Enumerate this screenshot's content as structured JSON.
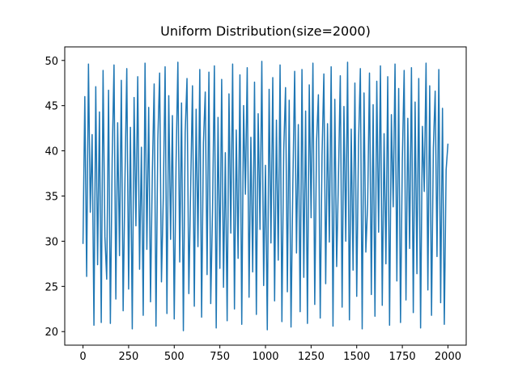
{
  "chart_data": {
    "type": "line",
    "title": "Uniform Distribution(size=2000)",
    "color": "#1f77b4",
    "xlim": [
      -100,
      2100
    ],
    "xticks": [
      0,
      250,
      500,
      750,
      1000,
      1250,
      1500,
      1750,
      2000
    ],
    "ylim": [
      18.5,
      51.5
    ],
    "yticks": [
      20,
      25,
      30,
      35,
      40,
      45,
      50
    ],
    "x": [
      0,
      10,
      20,
      30,
      40,
      50,
      60,
      70,
      80,
      90,
      100,
      110,
      120,
      130,
      140,
      150,
      160,
      170,
      180,
      190,
      200,
      210,
      220,
      230,
      240,
      250,
      260,
      270,
      280,
      290,
      300,
      310,
      320,
      330,
      340,
      350,
      360,
      370,
      380,
      390,
      400,
      410,
      420,
      430,
      440,
      450,
      460,
      470,
      480,
      490,
      500,
      510,
      520,
      530,
      540,
      550,
      560,
      570,
      580,
      590,
      600,
      610,
      620,
      630,
      640,
      650,
      660,
      670,
      680,
      690,
      700,
      710,
      720,
      730,
      740,
      750,
      760,
      770,
      780,
      790,
      800,
      810,
      820,
      830,
      840,
      850,
      860,
      870,
      880,
      890,
      900,
      910,
      920,
      930,
      940,
      950,
      960,
      970,
      980,
      990,
      1000,
      1010,
      1020,
      1030,
      1040,
      1050,
      1060,
      1070,
      1080,
      1090,
      1100,
      1110,
      1120,
      1130,
      1140,
      1150,
      1160,
      1170,
      1180,
      1190,
      1200,
      1210,
      1220,
      1230,
      1240,
      1250,
      1260,
      1270,
      1280,
      1290,
      1300,
      1310,
      1320,
      1330,
      1340,
      1350,
      1360,
      1370,
      1380,
      1390,
      1400,
      1410,
      1420,
      1430,
      1440,
      1450,
      1460,
      1470,
      1480,
      1490,
      1500,
      1510,
      1520,
      1530,
      1540,
      1550,
      1560,
      1570,
      1580,
      1590,
      1600,
      1610,
      1620,
      1630,
      1640,
      1650,
      1660,
      1670,
      1680,
      1690,
      1700,
      1710,
      1720,
      1730,
      1740,
      1750,
      1760,
      1770,
      1780,
      1790,
      1800,
      1810,
      1820,
      1830,
      1840,
      1850,
      1860,
      1870,
      1880,
      1890,
      1900,
      1910,
      1920,
      1930,
      1940,
      1950,
      1960,
      1970,
      1980,
      1990,
      2000
    ],
    "values": [
      29.7,
      46.0,
      26.1,
      49.6,
      33.2,
      41.8,
      20.7,
      47.1,
      27.4,
      44.3,
      21.0,
      48.9,
      30.5,
      25.8,
      46.7,
      20.9,
      39.2,
      49.5,
      23.6,
      43.1,
      28.4,
      47.8,
      22.3,
      36.9,
      49.1,
      24.7,
      42.6,
      20.3,
      45.9,
      31.7,
      48.2,
      26.9,
      40.4,
      21.8,
      49.7,
      29.1,
      44.8,
      23.3,
      37.6,
      47.4,
      20.6,
      41.2,
      48.6,
      25.5,
      34.8,
      49.3,
      22.0,
      46.1,
      30.2,
      43.9,
      21.4,
      38.7,
      49.8,
      27.7,
      45.3,
      20.1,
      42.0,
      48.0,
      24.2,
      35.9,
      47.2,
      22.8,
      44.6,
      29.4,
      49.0,
      21.6,
      40.9,
      46.5,
      26.3,
      48.7,
      23.1,
      33.5,
      49.4,
      20.4,
      43.7,
      27.0,
      47.9,
      24.9,
      39.8,
      21.2,
      46.3,
      30.9,
      49.6,
      22.5,
      42.3,
      28.1,
      48.4,
      20.8,
      45.0,
      35.2,
      49.2,
      23.8,
      41.5,
      26.6,
      47.6,
      21.9,
      44.1,
      31.3,
      49.9,
      25.1,
      38.4,
      20.2,
      46.8,
      29.8,
      48.1,
      23.4,
      43.4,
      27.9,
      49.5,
      21.1,
      40.1,
      47.0,
      24.4,
      45.6,
      20.5,
      36.3,
      48.8,
      28.7,
      42.9,
      22.2,
      49.0,
      26.0,
      44.4,
      20.9,
      47.3,
      32.6,
      49.7,
      23.0,
      41.0,
      46.2,
      21.5,
      39.5,
      48.5,
      25.3,
      43.0,
      29.9,
      49.3,
      20.6,
      45.7,
      27.2,
      37.1,
      48.3,
      22.7,
      44.9,
      30.0,
      49.8,
      21.3,
      42.4,
      26.8,
      47.5,
      23.9,
      40.7,
      49.1,
      20.3,
      46.4,
      28.8,
      34.1,
      48.6,
      24.1,
      45.1,
      21.7,
      47.7,
      31.0,
      49.4,
      22.9,
      41.9,
      27.5,
      48.2,
      20.7,
      44.0,
      33.8,
      49.6,
      25.6,
      46.9,
      21.0,
      39.0,
      48.9,
      23.5,
      43.6,
      29.2,
      49.2,
      22.1,
      45.4,
      26.4,
      48.0,
      20.4,
      42.7,
      35.5,
      49.7,
      24.6,
      47.2,
      21.8,
      40.3,
      46.6,
      28.3,
      49.0,
      23.2,
      44.7,
      20.8,
      37.9,
      40.8
    ]
  }
}
